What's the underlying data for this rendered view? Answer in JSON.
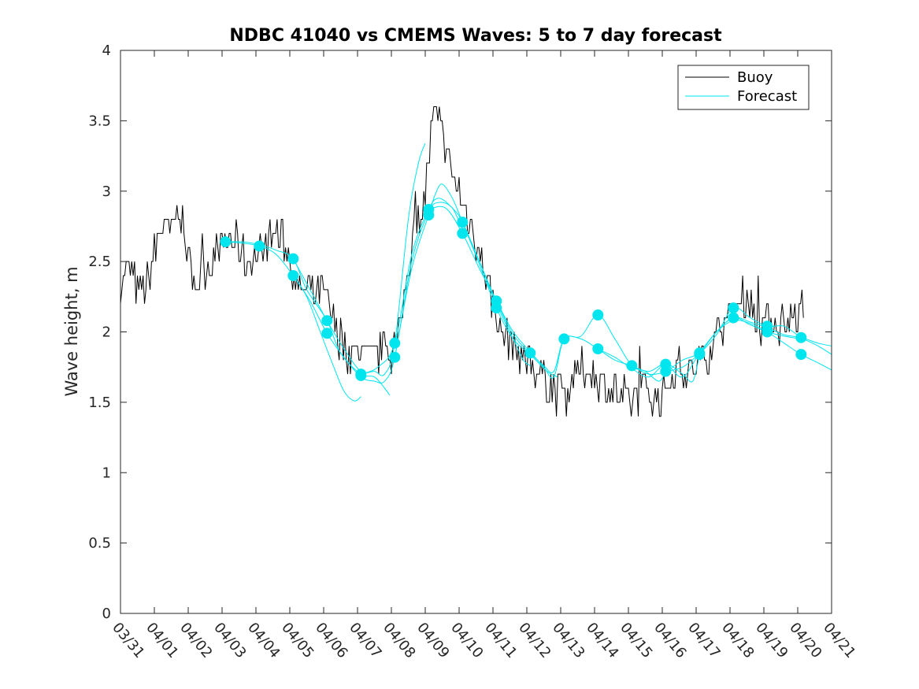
{
  "chart_data": {
    "type": "line",
    "title": "NDBC 41040 vs CMEMS Waves: 5 to 7 day forecast",
    "xlabel": "",
    "ylabel": "Wave height, m",
    "xlim": [
      0,
      21
    ],
    "ylim": [
      0,
      4
    ],
    "x_tick_labels": [
      "03/31",
      "04/01",
      "04/02",
      "04/03",
      "04/04",
      "04/05",
      "04/06",
      "04/07",
      "04/08",
      "04/09",
      "04/10",
      "04/11",
      "04/12",
      "04/13",
      "04/14",
      "04/15",
      "04/16",
      "04/17",
      "04/18",
      "04/19",
      "04/20",
      "04/21"
    ],
    "y_ticks": [
      0,
      0.5,
      1,
      1.5,
      2,
      2.5,
      3,
      3.5,
      4
    ],
    "y_tick_labels": [
      "0",
      "0.5",
      "1",
      "1.5",
      "2",
      "2.5",
      "3",
      "3.5",
      "4"
    ],
    "legend": {
      "position": "top-right",
      "entries": [
        {
          "name": "Buoy",
          "color": "#000000"
        },
        {
          "name": "Forecast",
          "color": "#00e5ee"
        }
      ]
    },
    "colors": {
      "buoy": "#000000",
      "forecast": "#00e5ee",
      "marker": "#00e5ee",
      "axis": "#262626"
    },
    "buoy_anchors": [
      [
        0,
        2.35
      ],
      [
        0.25,
        2.45
      ],
      [
        0.5,
        2.3
      ],
      [
        0.75,
        2.3
      ],
      [
        1.0,
        2.55
      ],
      [
        1.25,
        2.75
      ],
      [
        1.5,
        2.7
      ],
      [
        1.75,
        2.9
      ],
      [
        2.0,
        2.5
      ],
      [
        2.25,
        2.35
      ],
      [
        2.5,
        2.45
      ],
      [
        2.75,
        2.55
      ],
      [
        3.0,
        2.6
      ],
      [
        3.25,
        2.65
      ],
      [
        3.5,
        2.6
      ],
      [
        3.75,
        2.5
      ],
      [
        4.0,
        2.55
      ],
      [
        4.25,
        2.6
      ],
      [
        4.5,
        2.7
      ],
      [
        4.75,
        2.65
      ],
      [
        5.0,
        2.55
      ],
      [
        5.25,
        2.3
      ],
      [
        5.5,
        2.3
      ],
      [
        5.75,
        2.25
      ],
      [
        6.0,
        2.3
      ],
      [
        6.25,
        2.1
      ],
      [
        6.5,
        1.95
      ],
      [
        6.75,
        1.85
      ],
      [
        7.0,
        1.85
      ],
      [
        7.25,
        1.8
      ],
      [
        7.5,
        1.8
      ],
      [
        7.75,
        1.9
      ],
      [
        8.0,
        1.85
      ],
      [
        8.25,
        2.0
      ],
      [
        8.5,
        2.5
      ],
      [
        8.75,
        2.75
      ],
      [
        9.0,
        3.0
      ],
      [
        9.25,
        3.55
      ],
      [
        9.5,
        3.4
      ],
      [
        9.75,
        3.15
      ],
      [
        10.0,
        3.0
      ],
      [
        10.25,
        2.8
      ],
      [
        10.5,
        2.65
      ],
      [
        10.75,
        2.45
      ],
      [
        11.0,
        2.2
      ],
      [
        11.25,
        2.0
      ],
      [
        11.5,
        1.95
      ],
      [
        11.75,
        1.85
      ],
      [
        12.0,
        1.8
      ],
      [
        12.25,
        1.75
      ],
      [
        12.5,
        1.7
      ],
      [
        12.75,
        1.6
      ],
      [
        13.0,
        1.55
      ],
      [
        13.25,
        1.6
      ],
      [
        13.5,
        1.7
      ],
      [
        13.75,
        1.75
      ],
      [
        14.0,
        1.7
      ],
      [
        14.25,
        1.65
      ],
      [
        14.5,
        1.6
      ],
      [
        14.75,
        1.55
      ],
      [
        15.0,
        1.5
      ],
      [
        15.25,
        1.55
      ],
      [
        15.5,
        1.6
      ],
      [
        15.75,
        1.55
      ],
      [
        16.0,
        1.55
      ],
      [
        16.25,
        1.7
      ],
      [
        16.5,
        1.75
      ],
      [
        16.75,
        1.7
      ],
      [
        17.0,
        1.75
      ],
      [
        17.25,
        1.8
      ],
      [
        17.5,
        1.95
      ],
      [
        17.75,
        2.05
      ],
      [
        18.0,
        2.1
      ],
      [
        18.25,
        2.2
      ],
      [
        18.5,
        2.25
      ],
      [
        18.75,
        2.1
      ],
      [
        19.0,
        2.05
      ],
      [
        19.25,
        2.1
      ],
      [
        19.5,
        2.05
      ],
      [
        19.75,
        2.1
      ],
      [
        20.0,
        2.1
      ],
      [
        20.2,
        2.2
      ]
    ],
    "forecast_series": [
      {
        "name": "Forecast",
        "points": [
          [
            3.1,
            2.64
          ],
          [
            3.6,
            2.63
          ],
          [
            4.1,
            2.61
          ],
          [
            4.6,
            2.55
          ],
          [
            5.1,
            2.4
          ],
          [
            5.5,
            2.25
          ],
          [
            5.9,
            2.0
          ],
          [
            6.3,
            1.75
          ],
          [
            6.6,
            1.58
          ],
          [
            6.9,
            1.51
          ],
          [
            7.1,
            1.54
          ]
        ]
      },
      {
        "name": "Forecast",
        "points": [
          [
            3.1,
            2.64
          ],
          [
            3.6,
            2.64
          ],
          [
            4.1,
            2.62
          ],
          [
            4.6,
            2.58
          ],
          [
            5.1,
            2.52
          ],
          [
            5.5,
            2.3
          ],
          [
            6.1,
            2.08
          ],
          [
            6.5,
            1.85
          ],
          [
            7.1,
            1.7
          ],
          [
            7.5,
            1.68
          ],
          [
            7.8,
            1.6
          ],
          [
            7.95,
            1.55
          ]
        ]
      },
      {
        "name": "Forecast",
        "points": [
          [
            5.1,
            2.52
          ],
          [
            5.6,
            2.3
          ],
          [
            6.1,
            2.08
          ],
          [
            6.6,
            1.88
          ],
          [
            7.1,
            1.72
          ],
          [
            7.5,
            1.72
          ],
          [
            7.8,
            1.7
          ],
          [
            8.1,
            1.92
          ],
          [
            8.5,
            2.8
          ],
          [
            8.8,
            3.2
          ],
          [
            9.0,
            3.34
          ]
        ]
      },
      {
        "name": "Forecast",
        "points": [
          [
            5.1,
            2.4
          ],
          [
            5.6,
            2.22
          ],
          [
            6.1,
            1.99
          ],
          [
            6.6,
            1.82
          ],
          [
            7.1,
            1.68
          ],
          [
            7.5,
            1.65
          ],
          [
            7.8,
            1.65
          ],
          [
            8.1,
            1.82
          ],
          [
            8.6,
            2.5
          ],
          [
            9.1,
            2.85
          ],
          [
            9.4,
            2.92
          ],
          [
            9.8,
            2.88
          ],
          [
            10.1,
            2.72
          ]
        ]
      },
      {
        "name": "Forecast",
        "points": [
          [
            7.1,
            1.7
          ],
          [
            7.6,
            1.75
          ],
          [
            8.1,
            1.92
          ],
          [
            8.6,
            2.55
          ],
          [
            9.1,
            2.87
          ],
          [
            9.4,
            2.95
          ],
          [
            9.8,
            2.88
          ],
          [
            10.1,
            2.78
          ],
          [
            10.6,
            2.5
          ],
          [
            11.1,
            2.2
          ],
          [
            11.6,
            1.95
          ],
          [
            11.9,
            1.8
          ],
          [
            12.1,
            1.76
          ]
        ]
      },
      {
        "name": "Forecast",
        "points": [
          [
            8.1,
            1.82
          ],
          [
            8.6,
            2.45
          ],
          [
            9.1,
            2.83
          ],
          [
            9.3,
            2.98
          ],
          [
            9.5,
            3.05
          ],
          [
            9.8,
            2.95
          ],
          [
            10.1,
            2.78
          ],
          [
            10.6,
            2.48
          ],
          [
            11.1,
            2.17
          ],
          [
            11.6,
            1.95
          ],
          [
            12.1,
            1.84
          ],
          [
            12.6,
            1.72
          ],
          [
            12.9,
            1.68
          ]
        ]
      },
      {
        "name": "Forecast",
        "points": [
          [
            9.1,
            2.87
          ],
          [
            9.6,
            2.88
          ],
          [
            10.1,
            2.7
          ],
          [
            10.6,
            2.45
          ],
          [
            11.1,
            2.22
          ],
          [
            11.6,
            2.0
          ],
          [
            12.1,
            1.86
          ],
          [
            12.5,
            1.75
          ],
          [
            12.8,
            1.68
          ],
          [
            13.1,
            1.95
          ],
          [
            13.6,
            1.97
          ],
          [
            14.1,
            2.12
          ],
          [
            14.6,
            1.95
          ],
          [
            15.1,
            1.76
          ],
          [
            15.5,
            1.72
          ],
          [
            15.9,
            1.65
          ],
          [
            16.1,
            1.72
          ]
        ]
      },
      {
        "name": "Forecast",
        "points": [
          [
            10.1,
            2.78
          ],
          [
            10.6,
            2.5
          ],
          [
            11.1,
            2.22
          ],
          [
            11.6,
            1.98
          ],
          [
            12.1,
            1.85
          ],
          [
            12.5,
            1.76
          ],
          [
            12.8,
            1.72
          ],
          [
            13.1,
            1.95
          ],
          [
            13.6,
            1.95
          ],
          [
            14.1,
            1.88
          ],
          [
            14.6,
            1.82
          ],
          [
            15.1,
            1.74
          ],
          [
            15.6,
            1.68
          ],
          [
            16.1,
            1.77
          ],
          [
            16.6,
            1.7
          ],
          [
            16.9,
            1.65
          ],
          [
            17.1,
            1.84
          ]
        ]
      },
      {
        "name": "Forecast",
        "points": [
          [
            14.1,
            1.88
          ],
          [
            14.6,
            1.8
          ],
          [
            15.1,
            1.76
          ],
          [
            15.6,
            1.72
          ],
          [
            16.1,
            1.77
          ],
          [
            16.6,
            1.68
          ],
          [
            17.1,
            1.85
          ],
          [
            17.6,
            2.0
          ],
          [
            18.1,
            2.1
          ],
          [
            18.6,
            2.05
          ],
          [
            19.1,
            2.0
          ],
          [
            19.6,
            1.97
          ],
          [
            20.1,
            1.95
          ]
        ]
      },
      {
        "name": "Forecast",
        "points": [
          [
            15.1,
            1.76
          ],
          [
            15.6,
            1.7
          ],
          [
            16.1,
            1.72
          ],
          [
            16.6,
            1.8
          ],
          [
            17.1,
            1.85
          ],
          [
            17.6,
            1.98
          ],
          [
            18.1,
            2.17
          ],
          [
            18.6,
            2.1
          ],
          [
            19.1,
            2.04
          ],
          [
            19.6,
            2.04
          ],
          [
            20.1,
            1.96
          ],
          [
            20.6,
            1.9
          ],
          [
            21.0,
            1.84
          ]
        ]
      },
      {
        "name": "Forecast",
        "points": [
          [
            16.1,
            1.72
          ],
          [
            16.6,
            1.75
          ],
          [
            17.1,
            1.85
          ],
          [
            17.6,
            2.0
          ],
          [
            18.1,
            2.08
          ],
          [
            18.6,
            2.06
          ],
          [
            19.1,
            2.0
          ],
          [
            19.6,
            1.92
          ],
          [
            20.1,
            1.84
          ],
          [
            20.6,
            1.78
          ],
          [
            21.0,
            1.73
          ]
        ]
      },
      {
        "name": "Forecast",
        "points": [
          [
            17.1,
            1.84
          ],
          [
            17.6,
            2.0
          ],
          [
            18.1,
            2.1
          ],
          [
            18.6,
            2.07
          ],
          [
            19.1,
            2.03
          ],
          [
            19.6,
            1.98
          ],
          [
            20.1,
            1.96
          ],
          [
            20.6,
            1.92
          ],
          [
            21.0,
            1.9
          ]
        ]
      }
    ],
    "markers": [
      [
        3.1,
        2.64
      ],
      [
        4.1,
        2.61
      ],
      [
        5.1,
        2.52
      ],
      [
        5.1,
        2.4
      ],
      [
        6.1,
        2.08
      ],
      [
        6.1,
        1.99
      ],
      [
        7.1,
        1.7
      ],
      [
        7.1,
        1.69
      ],
      [
        8.1,
        1.92
      ],
      [
        8.1,
        1.82
      ],
      [
        9.1,
        2.87
      ],
      [
        9.1,
        2.83
      ],
      [
        10.1,
        2.78
      ],
      [
        10.1,
        2.7
      ],
      [
        11.1,
        2.22
      ],
      [
        11.1,
        2.17
      ],
      [
        12.1,
        1.85
      ],
      [
        13.1,
        1.95
      ],
      [
        14.1,
        2.12
      ],
      [
        14.1,
        1.88
      ],
      [
        15.1,
        1.76
      ],
      [
        16.1,
        1.77
      ],
      [
        16.1,
        1.72
      ],
      [
        17.1,
        1.85
      ],
      [
        17.1,
        1.84
      ],
      [
        18.1,
        2.17
      ],
      [
        18.1,
        2.1
      ],
      [
        19.1,
        2.04
      ],
      [
        19.1,
        2.0
      ],
      [
        20.1,
        1.96
      ],
      [
        20.1,
        1.84
      ]
    ]
  }
}
